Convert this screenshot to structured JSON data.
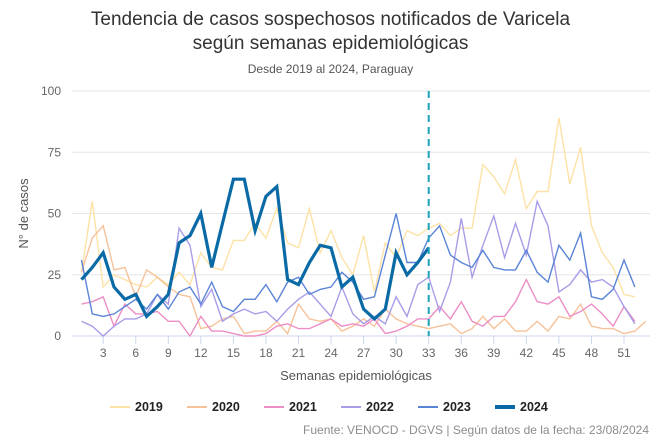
{
  "header": {
    "title_line1": "Tendencia de casos sospechosos notificados de Varicela",
    "title_line2": "según semanas epidemiológicas",
    "subtitle": "Desde 2019 al 2024, Paraguay"
  },
  "footer": {
    "source": "Fuente: VENOCD - DGVS | Según datos de la fecha: 23/08/2024"
  },
  "chart_data": {
    "type": "line",
    "title": "Tendencia de casos sospechosos notificados de Varicela según semanas epidemiológicas",
    "subtitle": "Desde 2019 al 2024, Paraguay",
    "xlabel": "Semanas epidemiológicas",
    "ylabel": "N° de casos",
    "ylim": [
      0,
      100
    ],
    "xlim": [
      1,
      53
    ],
    "yticks": [
      0,
      25,
      50,
      75,
      100
    ],
    "xticks": [
      3,
      6,
      9,
      12,
      15,
      18,
      21,
      24,
      27,
      30,
      33,
      36,
      39,
      42,
      45,
      48,
      51
    ],
    "grid": true,
    "legend_position": "bottom",
    "reference_line": {
      "x": 33,
      "style": "dashed",
      "color": "#1fa3b8"
    },
    "series": [
      {
        "name": "2019",
        "color": "#fde2a6",
        "width": "thin",
        "values": [
          26,
          55,
          20,
          25,
          23,
          21,
          20,
          24,
          21,
          26,
          21,
          34,
          28,
          27,
          39,
          39,
          46,
          40,
          52,
          38,
          36,
          52,
          34,
          43,
          32,
          25,
          41,
          18,
          38,
          32,
          43,
          41,
          44,
          46,
          41,
          44,
          44,
          70,
          65,
          58,
          72,
          52,
          59,
          59,
          89,
          62,
          77,
          45,
          34,
          28,
          17,
          16
        ]
      },
      {
        "name": "2020",
        "color": "#f6c29a",
        "width": "thin",
        "values": [
          26,
          40,
          45,
          27,
          28,
          16,
          27,
          24,
          20,
          17,
          16,
          3,
          4,
          7,
          8,
          1,
          2,
          2,
          6,
          1,
          13,
          7,
          6,
          7,
          2,
          4,
          7,
          4,
          11,
          7,
          5,
          4,
          3,
          4,
          5,
          1,
          3,
          8,
          3,
          7,
          2,
          2,
          6,
          2,
          8,
          7,
          13,
          4,
          3,
          3,
          1,
          2,
          6
        ]
      },
      {
        "name": "2021",
        "color": "#ec8ec6",
        "width": "thin",
        "values": [
          13,
          14,
          16,
          4,
          13,
          9,
          9,
          10,
          6,
          6,
          0,
          8,
          2,
          2,
          1,
          0,
          0,
          1,
          4,
          5,
          3,
          3,
          5,
          7,
          4,
          5,
          4,
          7,
          1,
          2,
          4,
          7,
          7,
          12,
          7,
          14,
          6,
          4,
          8,
          8,
          14,
          23,
          14,
          13,
          16,
          8,
          10,
          13,
          9,
          4,
          12,
          6
        ]
      },
      {
        "name": "2022",
        "color": "#a99ce8",
        "width": "thin",
        "values": [
          6,
          4,
          0,
          4,
          7,
          7,
          9,
          17,
          13,
          44,
          37,
          12,
          19,
          6,
          9,
          11,
          9,
          10,
          6,
          11,
          15,
          18,
          13,
          8,
          20,
          9,
          5,
          8,
          5,
          16,
          8,
          21,
          24,
          10,
          22,
          48,
          24,
          37,
          49,
          32,
          46,
          33,
          55,
          45,
          18,
          21,
          27,
          22,
          23,
          20,
          12,
          5
        ]
      },
      {
        "name": "2023",
        "color": "#5b84d6",
        "width": "thin",
        "values": [
          31,
          9,
          8,
          9,
          12,
          15,
          11,
          17,
          11,
          18,
          20,
          13,
          22,
          12,
          10,
          15,
          15,
          21,
          14,
          22,
          24,
          17,
          19,
          20,
          26,
          22,
          15,
          16,
          33,
          50,
          30,
          30,
          40,
          45,
          33,
          30,
          28,
          35,
          28,
          27,
          27,
          35,
          26,
          22,
          37,
          31,
          42,
          16,
          15,
          19,
          31,
          20
        ]
      },
      {
        "name": "2024",
        "color": "#0a6aa6",
        "width": "thick",
        "values": [
          23,
          28,
          34,
          20,
          15,
          17,
          8,
          12,
          17,
          38,
          41,
          50,
          28,
          46,
          64,
          64,
          43,
          57,
          61,
          23,
          21,
          30,
          37,
          36,
          20,
          24,
          11,
          7,
          11,
          34,
          25,
          30,
          36
        ]
      }
    ]
  }
}
